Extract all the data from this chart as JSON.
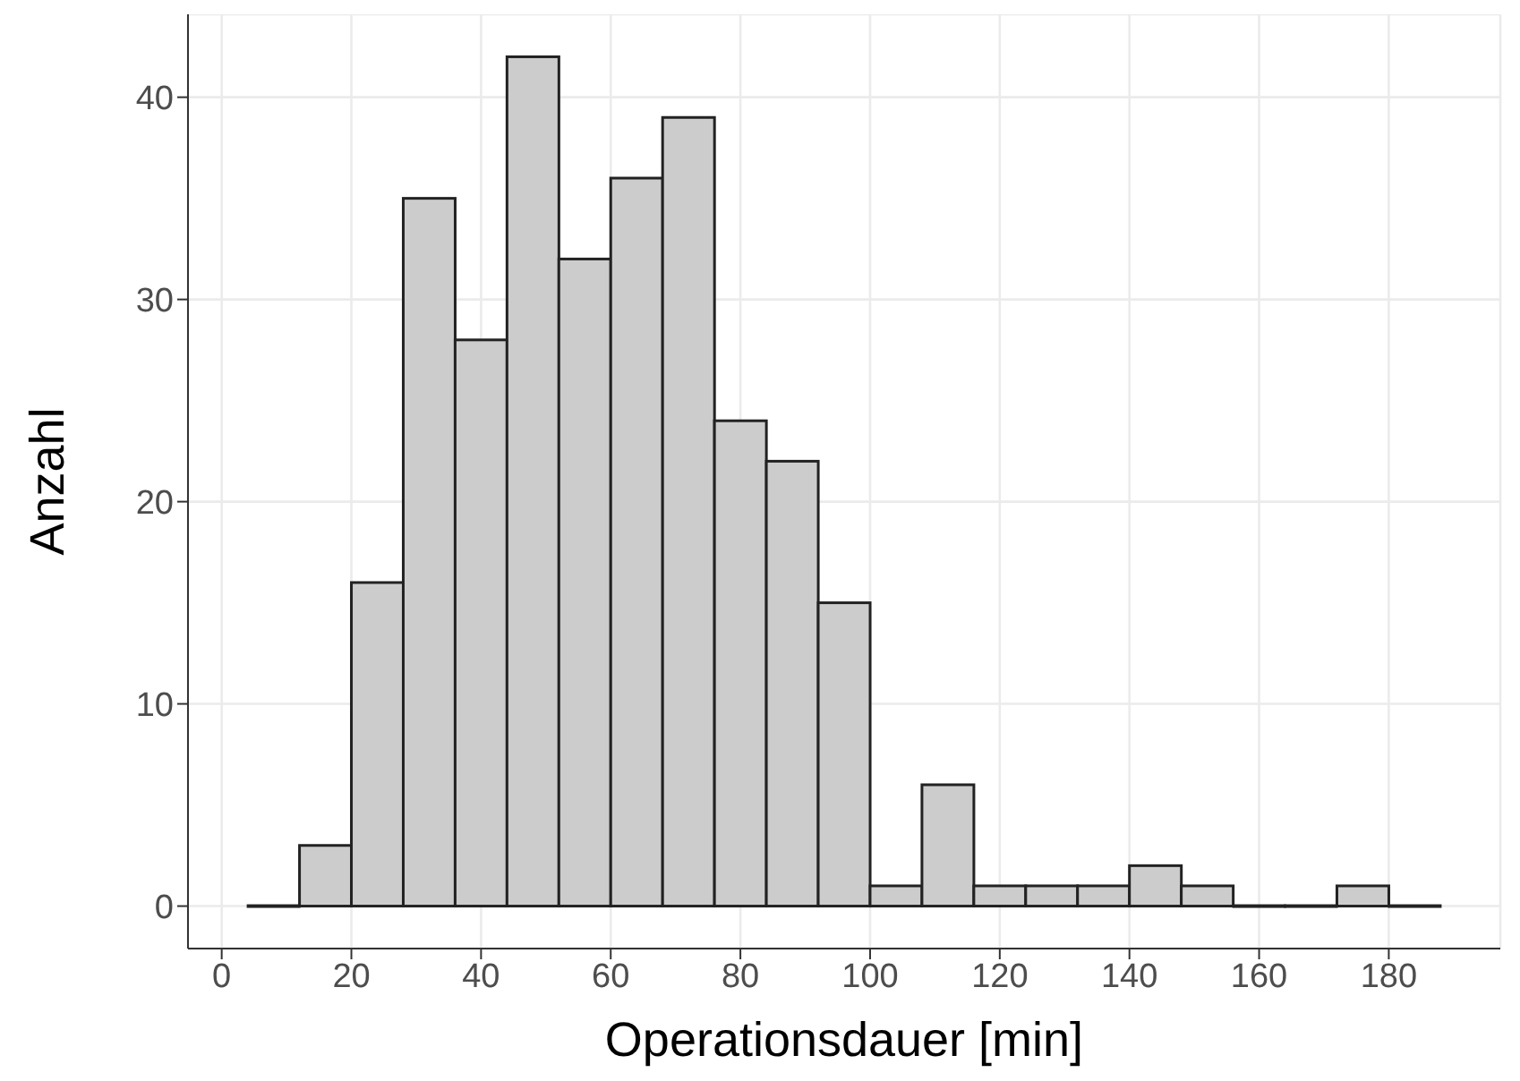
{
  "chart_data": {
    "type": "histogram",
    "xlabel": "Operationsdauer [min]",
    "ylabel": "Anzahl",
    "bins": [
      4,
      12,
      20,
      28,
      36,
      44,
      52,
      60,
      68,
      76,
      84,
      92,
      100,
      108,
      116,
      124,
      132,
      140,
      148,
      156,
      164,
      172,
      180,
      188
    ],
    "values": [
      0,
      3,
      16,
      35,
      28,
      42,
      32,
      36,
      39,
      24,
      22,
      15,
      1,
      6,
      1,
      1,
      1,
      2,
      1,
      0,
      0,
      1,
      0
    ],
    "color": "#cccccc",
    "xlim": [
      -5.2,
      197.2
    ],
    "xticks": [
      0,
      20,
      40,
      60,
      80,
      100,
      120,
      140,
      160,
      180
    ],
    "ylim": [
      -2.1,
      44.1
    ],
    "yticks": [
      0,
      10,
      20,
      30,
      40
    ],
    "grid": true
  }
}
